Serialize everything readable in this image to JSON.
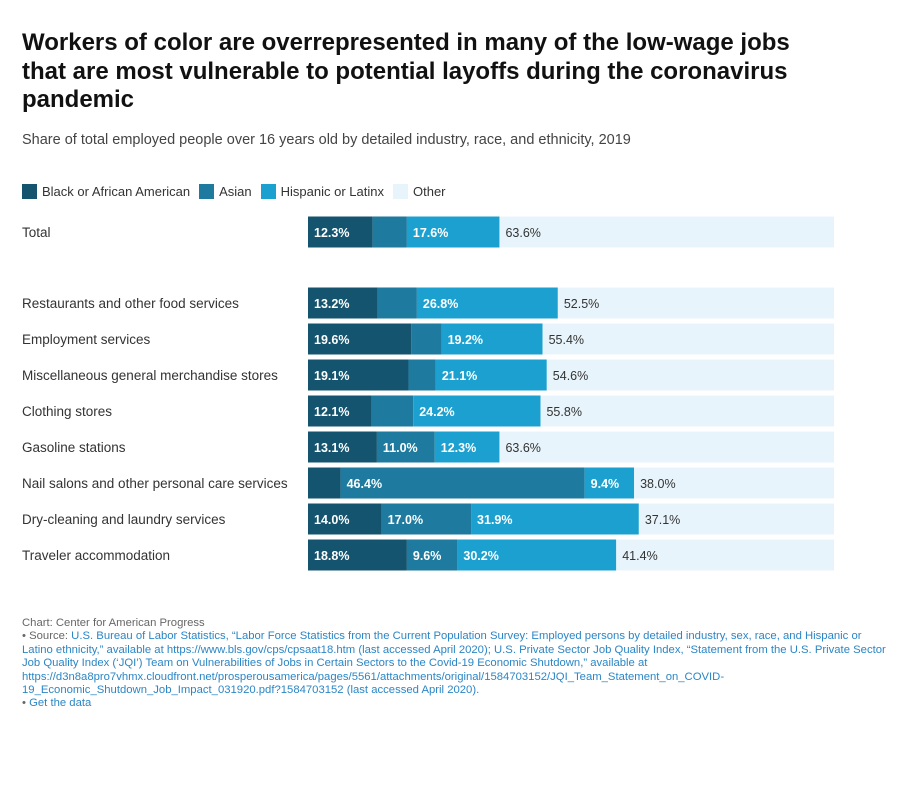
{
  "title": "Workers of color are overrepresented in many of the low-wage jobs that are most vulnerable to potential layoffs during the coronavirus pandemic",
  "subtitle": "Share of total employed people over 16 years old by detailed industry, race, and ethnicity, 2019",
  "colors": {
    "black": "#14546f",
    "asian": "#1e7a9e",
    "hispanic": "#1ca0cf",
    "other": "#e8f4fb"
  },
  "legend": [
    {
      "label": "Black or African American",
      "color": "#14546f"
    },
    {
      "label": "Asian",
      "color": "#1e7a9e"
    },
    {
      "label": "Hispanic or Latinx",
      "color": "#1ca0cf"
    },
    {
      "label": "Other",
      "color": "#e8f4fb"
    }
  ],
  "chart_data": {
    "type": "bar",
    "orientation": "horizontal",
    "stacked": true,
    "xlim": [
      0,
      100
    ],
    "categories": [
      "Total",
      "Restaurants and other food services",
      "Employment services",
      "Miscellaneous general merchandise stores",
      "Clothing stores",
      "Gasoline stations",
      "Nail salons and other personal care services",
      "Dry-cleaning and laundry services",
      "Traveler accommodation"
    ],
    "series": [
      {
        "name": "Black or African American",
        "values": [
          12.3,
          13.2,
          19.6,
          19.1,
          12.1,
          13.1,
          6.2,
          14.0,
          18.8
        ]
      },
      {
        "name": "Asian",
        "values": [
          6.5,
          7.5,
          5.8,
          5.2,
          7.9,
          11.0,
          46.4,
          17.0,
          9.6
        ]
      },
      {
        "name": "Hispanic or Latinx",
        "values": [
          17.6,
          26.8,
          19.2,
          21.1,
          24.2,
          12.3,
          9.4,
          31.9,
          30.2
        ]
      },
      {
        "name": "Other",
        "values": [
          63.6,
          52.5,
          55.4,
          54.6,
          55.8,
          63.6,
          38.0,
          37.1,
          41.4
        ]
      }
    ],
    "labels": [
      [
        "12.3%",
        "",
        "17.6%",
        "63.6%"
      ],
      [
        "13.2%",
        "",
        "26.8%",
        "52.5%"
      ],
      [
        "19.6%",
        "",
        "19.2%",
        "55.4%"
      ],
      [
        "19.1%",
        "",
        "21.1%",
        "54.6%"
      ],
      [
        "12.1%",
        "",
        "24.2%",
        "55.8%"
      ],
      [
        "13.1%",
        "11.0%",
        "12.3%",
        "63.6%"
      ],
      [
        "",
        "46.4%",
        "9.4%",
        "38.0%"
      ],
      [
        "14.0%",
        "17.0%",
        "31.9%",
        "37.1%"
      ],
      [
        "18.8%",
        "9.6%",
        "30.2%",
        "41.4%"
      ]
    ]
  },
  "footer": {
    "credit": "Chart: Center for American Progress",
    "source_prefix": "• Source: ",
    "source_text": "U.S. Bureau of Labor Statistics, “Labor Force Statistics from the Current Population Survey: Employed persons by detailed industry, sex, race, and Hispanic or Latino ethnicity,” available at https://www.bls.gov/cps/cpsaat18.htm (last accessed April 2020); U.S. Private Sector Job Quality Index, “Statement from the U.S. Private Sector Job Quality Index (‘JQI’) Team on Vulnerabilities of Jobs in Certain Sectors to the Covid-19 Economic Shutdown,” available at https://d3n8a8pro7vhmx.cloudfront.net/prosperousamerica/pages/5561/attachments/original/1584703152/JQI_Team_Statement_on_COVID-19_Economic_Shutdown_Job_Impact_031920.pdf?1584703152 (last accessed April 2020).",
    "get_data_prefix": "• ",
    "get_data": "Get the data"
  }
}
